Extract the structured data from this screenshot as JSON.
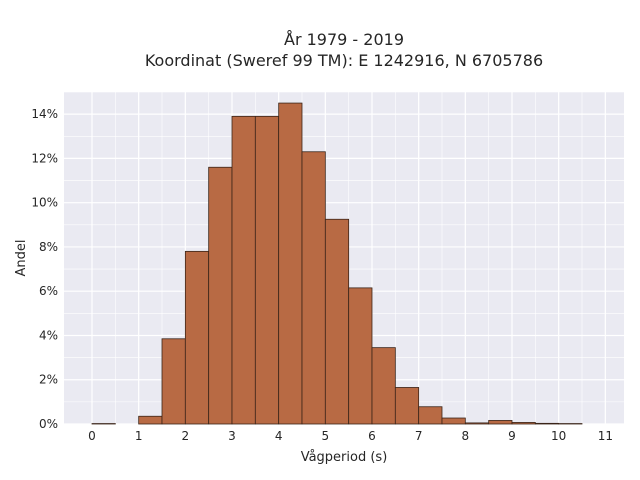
{
  "chart_data": {
    "type": "bar",
    "title_lines": [
      "År 1979 - 2019",
      "Koordinat (Sweref 99 TM): E 1242916, N 6705786"
    ],
    "xlabel": "Vågperiod (s)",
    "ylabel": "Andel",
    "bin_width": 0.5,
    "bin_starts": [
      0,
      0.5,
      1,
      1.5,
      2,
      2.5,
      3,
      3.5,
      4,
      4.5,
      5,
      5.5,
      6,
      6.5,
      7,
      7.5,
      8,
      8.5,
      9,
      9.5,
      10,
      10.5
    ],
    "values": [
      0.02,
      0.0,
      0.35,
      3.85,
      7.8,
      11.6,
      13.9,
      13.9,
      14.5,
      12.3,
      9.25,
      6.15,
      3.45,
      1.65,
      0.78,
      0.27,
      0.05,
      0.16,
      0.07,
      0.03,
      0.02,
      0.0
    ],
    "xlim": [
      -0.6,
      11.4
    ],
    "ylim": [
      0,
      15
    ],
    "x_ticks": [
      0,
      1,
      2,
      3,
      4,
      5,
      6,
      7,
      8,
      9,
      10,
      11
    ],
    "x_tick_labels": [
      "0",
      "1",
      "2",
      "3",
      "4",
      "5",
      "6",
      "7",
      "8",
      "9",
      "10",
      "11"
    ],
    "y_ticks": [
      0,
      2,
      4,
      6,
      8,
      10,
      12,
      14
    ],
    "y_tick_labels": [
      "0%",
      "2%",
      "4%",
      "6%",
      "8%",
      "10%",
      "12%",
      "14%"
    ],
    "grid": true,
    "colors": {
      "bar_fill": "#b86a44",
      "bar_stroke": "#3a2418",
      "plot_background": "#eaeaf2",
      "grid": "#ffffff"
    }
  }
}
